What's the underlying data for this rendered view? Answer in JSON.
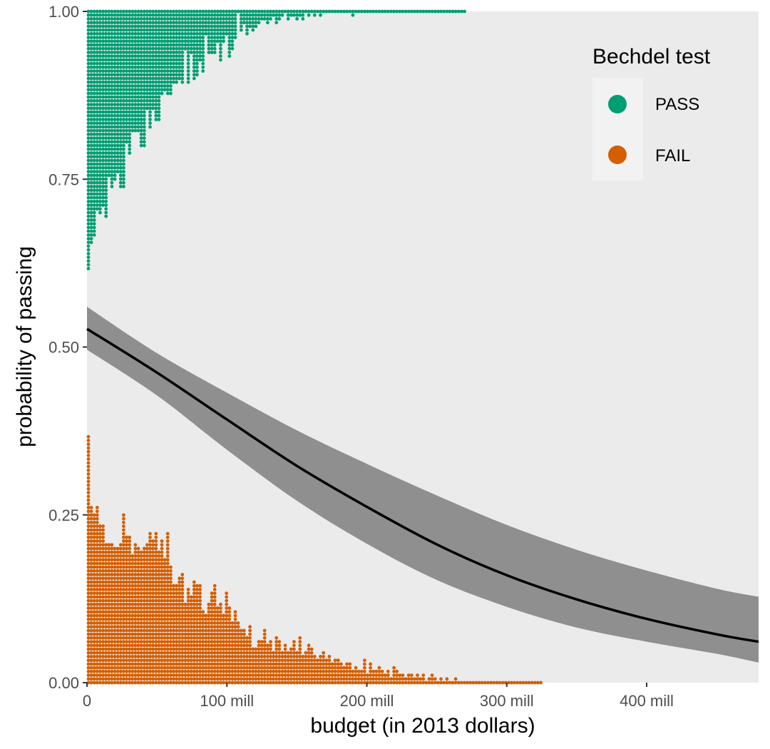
{
  "chart_data": {
    "type": "scatter",
    "subtype": "dotplot with logistic regression fit",
    "title": "",
    "xlabel": "budget (in 2013 dollars)",
    "ylabel": "probability of passing",
    "xlim": [
      0,
      480
    ],
    "ylim": [
      0,
      1
    ],
    "x_unit": "million dollars",
    "x_ticks": [
      0,
      100,
      200,
      300,
      400
    ],
    "x_tick_labels": [
      "0",
      "100 mill",
      "200 mill",
      "300 mill",
      "400 mill"
    ],
    "y_ticks": [
      0,
      0.25,
      0.5,
      0.75,
      1.0
    ],
    "y_tick_labels": [
      "0.00",
      "0.25",
      "0.50",
      "0.75",
      "1.00"
    ],
    "grid": false,
    "legend": {
      "title": "Bechdel test",
      "position": "top-right",
      "entries": [
        {
          "label": "PASS",
          "color": "#009E73"
        },
        {
          "label": "FAIL",
          "color": "#D55E00"
        }
      ]
    },
    "fit": {
      "name": "logistic fit",
      "color": "#000000",
      "ribbon_color": "#8f8f8f",
      "x": [
        0,
        50,
        100,
        150,
        200,
        250,
        300,
        350,
        400,
        450,
        480
      ],
      "y": [
        0.527,
        0.462,
        0.392,
        0.323,
        0.262,
        0.206,
        0.16,
        0.124,
        0.095,
        0.072,
        0.061
      ],
      "lower": [
        0.496,
        0.428,
        0.347,
        0.271,
        0.207,
        0.153,
        0.113,
        0.082,
        0.061,
        0.043,
        0.03
      ],
      "upper": [
        0.56,
        0.491,
        0.432,
        0.376,
        0.326,
        0.279,
        0.235,
        0.198,
        0.167,
        0.14,
        0.128
      ]
    },
    "series": [
      {
        "name": "PASS",
        "color": "#009E73",
        "baseline": 1,
        "direction": "down",
        "dot_step": 0.00555,
        "bin_width_mill": 2.1,
        "bins_start_mill": 1.0,
        "bin_counts": [
          70,
          63,
          61,
          54,
          55,
          53,
          56,
          45,
          48,
          46,
          44,
          48,
          48,
          36,
          39,
          33,
          33,
          33,
          37,
          37,
          27,
          32,
          27,
          30,
          30,
          23,
          22,
          23,
          23,
          20,
          20,
          19,
          20,
          11,
          20,
          12,
          19,
          18,
          14,
          17,
          7,
          12,
          12,
          12,
          9,
          14,
          9,
          7,
          13,
          11,
          8,
          1,
          6,
          4,
          7,
          5,
          6,
          5,
          4,
          3,
          3,
          4,
          3,
          2,
          4,
          3,
          2,
          1,
          3,
          2,
          2,
          3,
          2,
          3,
          1,
          2,
          1,
          2,
          1,
          2,
          1,
          1,
          1,
          1,
          1,
          1,
          1,
          1,
          1,
          1,
          2,
          1,
          1,
          1,
          1,
          1,
          1,
          1,
          1,
          1,
          1,
          1,
          1,
          1,
          1,
          1,
          1,
          1,
          1,
          1,
          1,
          1,
          1,
          1,
          1,
          1,
          1,
          1,
          1,
          1,
          1,
          1,
          1,
          1,
          1,
          1,
          1,
          1,
          1
        ]
      },
      {
        "name": "FAIL",
        "color": "#D55E00",
        "baseline": 0,
        "direction": "up",
        "dot_step": 0.00555,
        "bin_width_mill": 2.1,
        "bins_start_mill": 1.0,
        "bin_counts": [
          67,
          48,
          46,
          48,
          43,
          43,
          38,
          38,
          38,
          37,
          37,
          38,
          46,
          40,
          40,
          35,
          38,
          37,
          36,
          37,
          38,
          41,
          39,
          41,
          36,
          39,
          34,
          41,
          32,
          27,
          27,
          29,
          30,
          22,
          26,
          24,
          28,
          27,
          27,
          20,
          19,
          22,
          25,
          27,
          21,
          22,
          19,
          25,
          21,
          17,
          20,
          17,
          15,
          15,
          13,
          16,
          10,
          10,
          12,
          12,
          15,
          11,
          12,
          9,
          13,
          12,
          9,
          11,
          9,
          10,
          12,
          9,
          13,
          8,
          9,
          11,
          10,
          8,
          7,
          8,
          9,
          7,
          8,
          6,
          7,
          7,
          6,
          5,
          6,
          6,
          4,
          5,
          4,
          4,
          7,
          3,
          6,
          4,
          4,
          5,
          4,
          3,
          4,
          2,
          5,
          4,
          3,
          3,
          2,
          3,
          3,
          2,
          3,
          2,
          3,
          1,
          2,
          3,
          2,
          1,
          2,
          1,
          2,
          1,
          1,
          2,
          1,
          1,
          1,
          1,
          1,
          1,
          1,
          1,
          1,
          1,
          1,
          1,
          1,
          1,
          1,
          1,
          1,
          1,
          1,
          1,
          1,
          1,
          1,
          1,
          1,
          1,
          1,
          1,
          1
        ]
      }
    ]
  }
}
